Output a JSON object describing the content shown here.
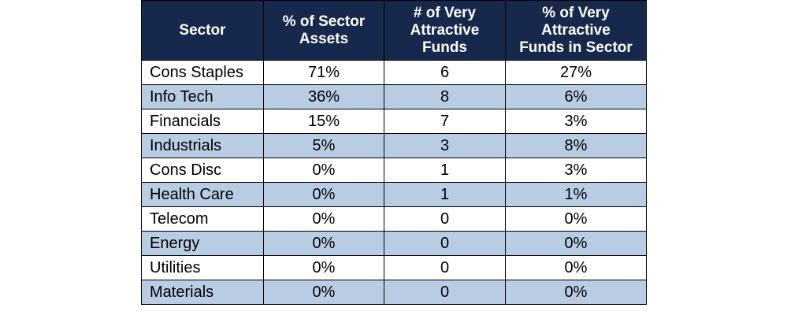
{
  "table": {
    "headers": [
      "Sector",
      "% of Sector\nAssets",
      "# of Very\nAttractive\nFunds",
      "% of Very\nAttractive\nFunds in Sector"
    ],
    "rows": [
      {
        "sector": "Cons Staples",
        "pct_assets": "71%",
        "num_funds": "6",
        "pct_funds": "27%"
      },
      {
        "sector": "Info Tech",
        "pct_assets": "36%",
        "num_funds": "8",
        "pct_funds": "6%"
      },
      {
        "sector": "Financials",
        "pct_assets": "15%",
        "num_funds": "7",
        "pct_funds": "3%"
      },
      {
        "sector": "Industrials",
        "pct_assets": "5%",
        "num_funds": "3",
        "pct_funds": "8%"
      },
      {
        "sector": "Cons Disc",
        "pct_assets": "0%",
        "num_funds": "1",
        "pct_funds": "3%"
      },
      {
        "sector": "Health Care",
        "pct_assets": "0%",
        "num_funds": "1",
        "pct_funds": "1%"
      },
      {
        "sector": "Telecom",
        "pct_assets": "0%",
        "num_funds": "0",
        "pct_funds": "0%"
      },
      {
        "sector": "Energy",
        "pct_assets": "0%",
        "num_funds": "0",
        "pct_funds": "0%"
      },
      {
        "sector": "Utilities",
        "pct_assets": "0%",
        "num_funds": "0",
        "pct_funds": "0%"
      },
      {
        "sector": "Materials",
        "pct_assets": "0%",
        "num_funds": "0",
        "pct_funds": "0%"
      }
    ],
    "colors": {
      "header_bg": "#17284d",
      "header_text": "#ffffff",
      "alt_row_bg": "#b8cce4",
      "row_bg": "#ffffff",
      "border": "#000000"
    }
  }
}
